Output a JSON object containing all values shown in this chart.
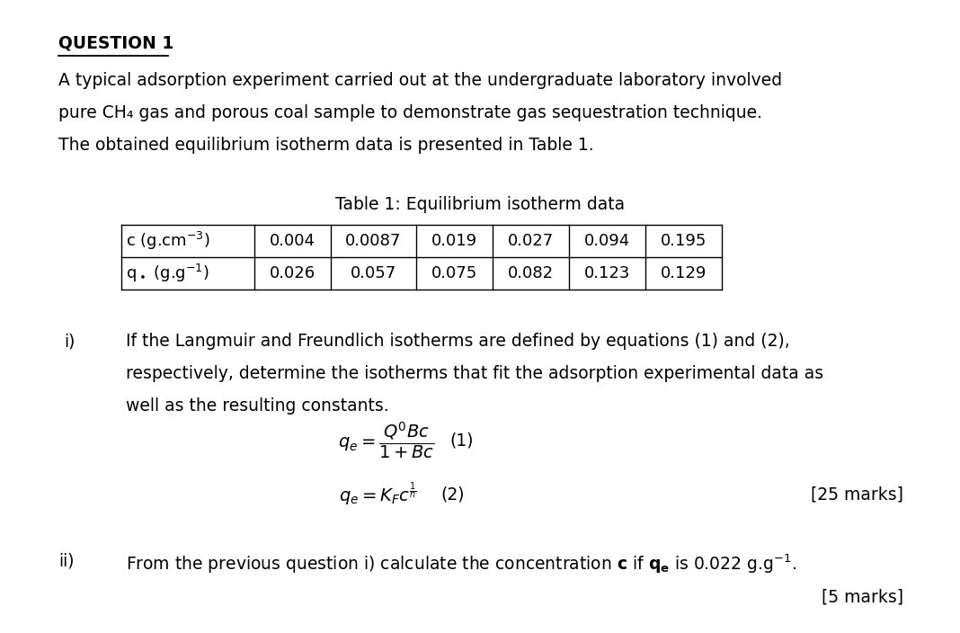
{
  "bg_color": "#ffffff",
  "title_text": "QUESTION 1",
  "para1": "A typical adsorption experiment carried out at the undergraduate laboratory involved",
  "para2": "pure CH₄ gas and porous coal sample to demonstrate gas sequestration technique.",
  "para3": "The obtained equilibrium isotherm data is presented in Table 1.",
  "table_title": "Table 1: Equilibrium isotherm data",
  "table_row1_data": [
    "0.004",
    "0.0087",
    "0.019",
    "0.027",
    "0.094",
    "0.195"
  ],
  "table_row2_data": [
    "0.026",
    "0.057",
    "0.075",
    "0.082",
    "0.123",
    "0.129"
  ],
  "part_i_line1": "If the Langmuir and Freundlich isotherms are defined by equations (1) and (2),",
  "part_i_line2": "respectively, determine the isotherms that fit the adsorption experimental data as",
  "part_i_line3": "well as the resulting constants.",
  "marks1": "[25 marks]",
  "marks2": "[5 marks]",
  "font_size_body": 13.5
}
